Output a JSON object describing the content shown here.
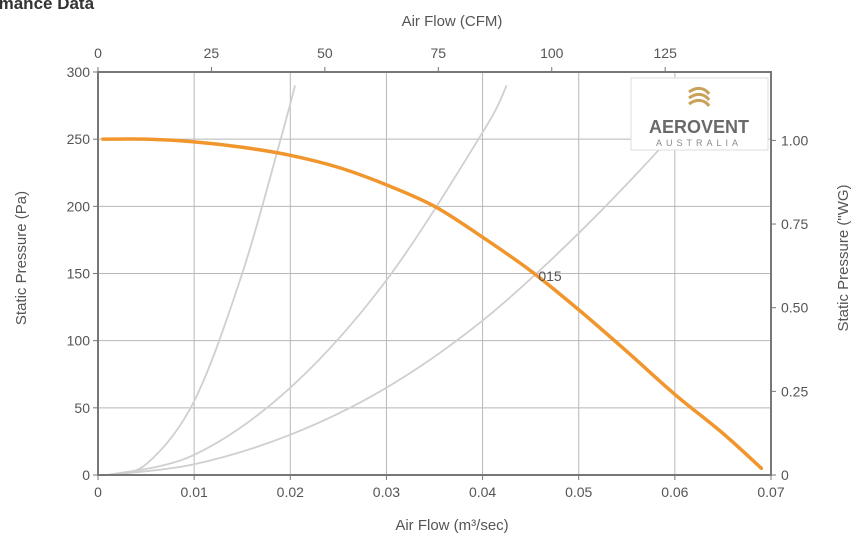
{
  "page": {
    "title": "rmance Data"
  },
  "chart_data": {
    "type": "line",
    "xlabel_bottom": "Air Flow (m³/sec)",
    "xlabel_top": "Air Flow (CFM)",
    "ylabel_left": "Static Pressure (Pa)",
    "ylabel_right": "Static Pressure (\"WG)",
    "xlim": [
      0,
      0.07
    ],
    "ylim": [
      0,
      300
    ],
    "x_ticks": [
      0,
      0.01,
      0.02,
      0.03,
      0.04,
      0.05,
      0.06,
      0.07
    ],
    "x_tick_labels": [
      "0",
      "0.01",
      "0.02",
      "0.03",
      "0.04",
      "0.05",
      "0.06",
      "0.07"
    ],
    "y_ticks": [
      0,
      50,
      100,
      150,
      200,
      250,
      300
    ],
    "top_ticks_cfm": [
      0,
      25,
      50,
      75,
      100,
      125
    ],
    "right_ticks_wg": [
      0,
      0.25,
      0.5,
      0.75,
      1.0
    ],
    "right_tick_labels": [
      "0",
      "0.25",
      "0.50",
      "0.75",
      "1.00"
    ],
    "grid": true,
    "series": [
      {
        "name": "015",
        "color": "#f0962d",
        "x": [
          0.0005,
          0.005,
          0.01,
          0.015,
          0.02,
          0.025,
          0.03,
          0.035,
          0.04,
          0.045,
          0.05,
          0.055,
          0.06,
          0.065,
          0.069
        ],
        "y": [
          250,
          250,
          248,
          244,
          238,
          229,
          216,
          200,
          177,
          152,
          123,
          92,
          60,
          31,
          5
        ]
      }
    ],
    "system_curves": [
      {
        "x": [
          0.001,
          0.005,
          0.01,
          0.015,
          0.019,
          0.0205
        ],
        "y": [
          0,
          8,
          55,
          150,
          250,
          290
        ]
      },
      {
        "x": [
          0.001,
          0.01,
          0.02,
          0.03,
          0.04,
          0.0425
        ],
        "y": [
          0,
          15,
          65,
          145,
          255,
          290
        ]
      },
      {
        "x": [
          0.001,
          0.01,
          0.02,
          0.03,
          0.04,
          0.05,
          0.06,
          0.064
        ],
        "y": [
          0,
          8,
          30,
          65,
          115,
          180,
          255,
          290
        ]
      }
    ]
  },
  "logo": {
    "name": "AEROVENT",
    "sub": "AUSTRALIA"
  },
  "colors": {
    "curve": "#f0962d",
    "grid": "#b8b8b8",
    "frame": "#777777",
    "system": "#cfcfcf",
    "logo_gold": "#c8a15a"
  }
}
